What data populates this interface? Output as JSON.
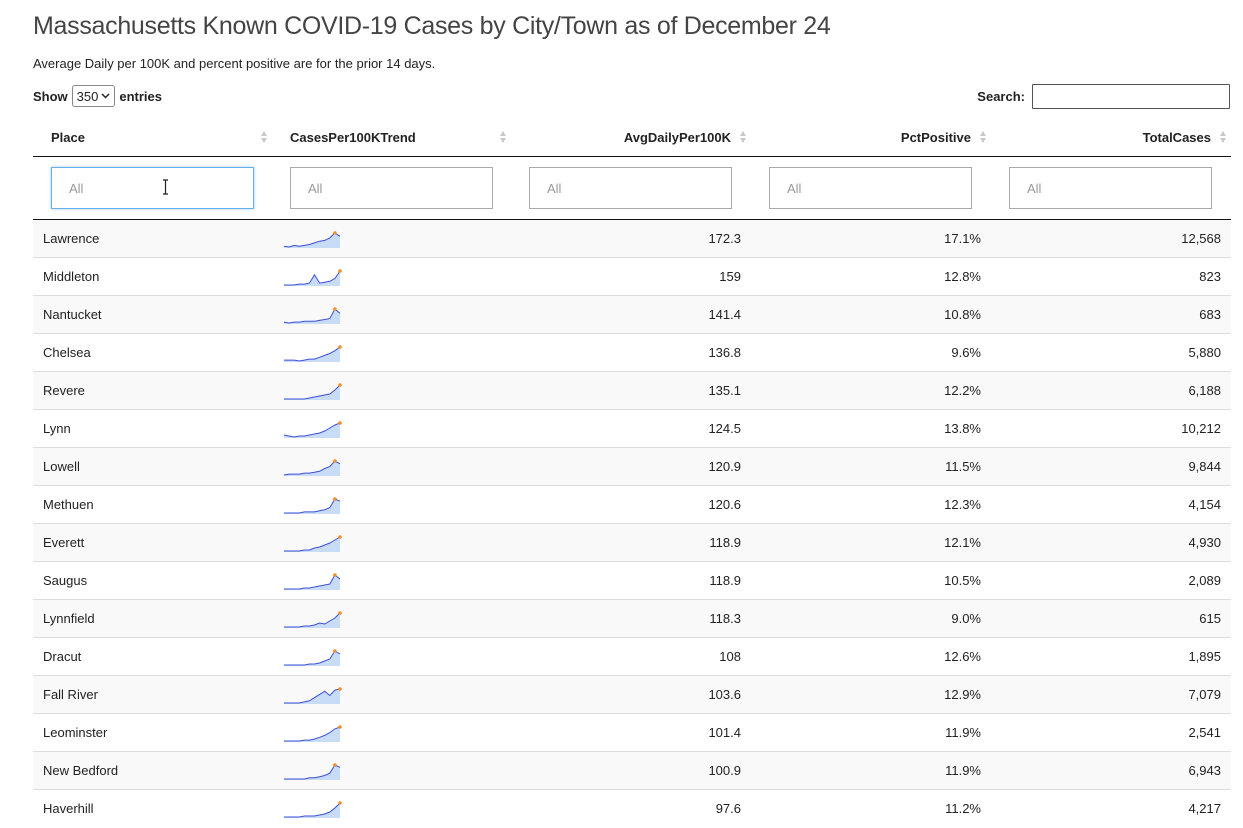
{
  "title": "Massachusetts Known COVID-19 Cases by City/Town as of December 24",
  "subtitle": "Average Daily per 100K and percent positive are for the prior 14 days.",
  "length": {
    "show_label": "Show",
    "value": "350",
    "entries_label": "entries"
  },
  "search": {
    "label": "Search:",
    "value": ""
  },
  "columns": [
    "Place",
    "CasesPer100KTrend",
    "AvgDailyPer100K",
    "PctPositive",
    "TotalCases"
  ],
  "filters": {
    "placeholder": "All"
  },
  "colors": {
    "spark_line": "#3b4fd8",
    "spark_fill": "#c8dcf7",
    "spark_marker": "#f28e2b"
  },
  "rows": [
    {
      "place": "Lawrence",
      "avg": "172.3",
      "pct": "17.1%",
      "total": "12,568",
      "trend": [
        2,
        1,
        3,
        2,
        3,
        4,
        6,
        8,
        9,
        12,
        18,
        14
      ]
    },
    {
      "place": "Middleton",
      "avg": "159",
      "pct": "12.8%",
      "total": "823",
      "trend": [
        1,
        1,
        1,
        2,
        2,
        3,
        12,
        3,
        4,
        5,
        8,
        16
      ]
    },
    {
      "place": "Nantucket",
      "avg": "141.4",
      "pct": "10.8%",
      "total": "683",
      "trend": [
        2,
        1,
        2,
        2,
        3,
        3,
        3,
        4,
        5,
        6,
        17,
        12
      ]
    },
    {
      "place": "Chelsea",
      "avg": "136.8",
      "pct": "9.6%",
      "total": "5,880",
      "trend": [
        3,
        3,
        3,
        2,
        3,
        4,
        4,
        6,
        8,
        10,
        13,
        17
      ]
    },
    {
      "place": "Revere",
      "avg": "135.1",
      "pct": "12.2%",
      "total": "6,188",
      "trend": [
        2,
        2,
        2,
        2,
        2,
        3,
        4,
        5,
        6,
        7,
        11,
        16
      ]
    },
    {
      "place": "Lynn",
      "avg": "124.5",
      "pct": "13.8%",
      "total": "10,212",
      "trend": [
        4,
        3,
        2,
        3,
        3,
        4,
        5,
        6,
        8,
        11,
        14,
        16
      ]
    },
    {
      "place": "Lowell",
      "avg": "120.9",
      "pct": "11.5%",
      "total": "9,844",
      "trend": [
        1,
        2,
        2,
        2,
        3,
        3,
        4,
        5,
        8,
        10,
        16,
        13
      ]
    },
    {
      "place": "Methuen",
      "avg": "120.6",
      "pct": "12.3%",
      "total": "4,154",
      "trend": [
        1,
        1,
        1,
        1,
        2,
        2,
        2,
        3,
        4,
        6,
        14,
        12
      ]
    },
    {
      "place": "Everett",
      "avg": "118.9",
      "pct": "12.1%",
      "total": "4,930",
      "trend": [
        2,
        2,
        2,
        2,
        3,
        3,
        5,
        6,
        8,
        10,
        13,
        16
      ]
    },
    {
      "place": "Saugus",
      "avg": "118.9",
      "pct": "10.5%",
      "total": "2,089",
      "trend": [
        1,
        1,
        1,
        1,
        2,
        2,
        3,
        4,
        5,
        6,
        15,
        11
      ]
    },
    {
      "place": "Lynnfield",
      "avg": "118.3",
      "pct": "9.0%",
      "total": "615",
      "trend": [
        1,
        1,
        1,
        1,
        2,
        2,
        3,
        5,
        4,
        7,
        10,
        15
      ]
    },
    {
      "place": "Dracut",
      "avg": "108",
      "pct": "12.6%",
      "total": "1,895",
      "trend": [
        1,
        1,
        1,
        1,
        1,
        2,
        2,
        3,
        5,
        7,
        15,
        12
      ]
    },
    {
      "place": "Fall River",
      "avg": "103.6",
      "pct": "12.9%",
      "total": "7,079",
      "trend": [
        1,
        1,
        1,
        1,
        2,
        3,
        6,
        9,
        12,
        8,
        13,
        14
      ]
    },
    {
      "place": "Leominster",
      "avg": "101.4",
      "pct": "11.9%",
      "total": "2,541",
      "trend": [
        1,
        1,
        1,
        1,
        2,
        2,
        3,
        5,
        7,
        10,
        14,
        16
      ]
    },
    {
      "place": "New Bedford",
      "avg": "100.9",
      "pct": "11.9%",
      "total": "6,943",
      "trend": [
        1,
        1,
        1,
        1,
        1,
        2,
        2,
        3,
        4,
        6,
        13,
        11
      ]
    },
    {
      "place": "Haverhill",
      "avg": "97.6",
      "pct": "11.2%",
      "total": "4,217",
      "trend": [
        1,
        1,
        1,
        1,
        2,
        2,
        2,
        3,
        4,
        6,
        10,
        15
      ]
    }
  ]
}
